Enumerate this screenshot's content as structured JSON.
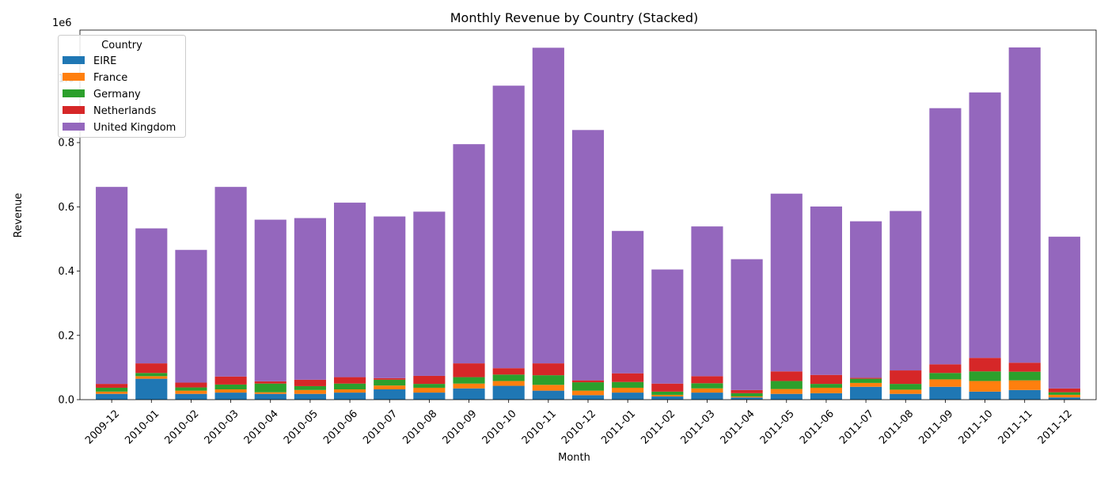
{
  "chart_data": {
    "type": "bar",
    "stacked": true,
    "title": "Monthly Revenue by Country (Stacked)",
    "xlabel": "Month",
    "ylabel": "Revenue",
    "y_scale_label": "1e6",
    "y_tick_labels": [
      "0.0",
      "0.2",
      "0.4",
      "0.6",
      "0.8",
      "1.0"
    ],
    "ylim": [
      0,
      1.15
    ],
    "grid": false,
    "legend_title": "Country",
    "legend_position": "top-left",
    "categories": [
      "2009-12",
      "2010-01",
      "2010-02",
      "2010-03",
      "2010-04",
      "2010-05",
      "2010-06",
      "2010-07",
      "2010-08",
      "2010-09",
      "2010-10",
      "2010-11",
      "2010-12",
      "2011-01",
      "2011-02",
      "2011-03",
      "2011-04",
      "2011-05",
      "2011-06",
      "2011-07",
      "2011-08",
      "2011-09",
      "2011-10",
      "2011-11",
      "2011-12"
    ],
    "series": [
      {
        "name": "EIRE",
        "color": "#1f77b4",
        "values": [
          0.018,
          0.065,
          0.018,
          0.022,
          0.018,
          0.018,
          0.022,
          0.032,
          0.022,
          0.035,
          0.043,
          0.028,
          0.014,
          0.022,
          0.01,
          0.022,
          0.007,
          0.018,
          0.02,
          0.04,
          0.018,
          0.04,
          0.025,
          0.03,
          0.007
        ]
      },
      {
        "name": "France",
        "color": "#ff7f0e",
        "values": [
          0.007,
          0.008,
          0.01,
          0.01,
          0.005,
          0.012,
          0.01,
          0.012,
          0.015,
          0.015,
          0.015,
          0.018,
          0.014,
          0.015,
          0.005,
          0.013,
          0.003,
          0.015,
          0.017,
          0.012,
          0.013,
          0.023,
          0.033,
          0.03,
          0.008
        ]
      },
      {
        "name": "Germany",
        "color": "#2ca02c",
        "values": [
          0.012,
          0.01,
          0.01,
          0.015,
          0.027,
          0.012,
          0.018,
          0.018,
          0.012,
          0.02,
          0.02,
          0.03,
          0.026,
          0.018,
          0.01,
          0.016,
          0.01,
          0.025,
          0.012,
          0.013,
          0.018,
          0.02,
          0.03,
          0.027,
          0.008
        ]
      },
      {
        "name": "Netherlands",
        "color": "#d62728",
        "values": [
          0.012,
          0.03,
          0.015,
          0.025,
          0.007,
          0.02,
          0.02,
          0.005,
          0.025,
          0.043,
          0.02,
          0.037,
          0.006,
          0.027,
          0.025,
          0.022,
          0.01,
          0.03,
          0.028,
          0.003,
          0.042,
          0.027,
          0.042,
          0.028,
          0.012
        ]
      },
      {
        "name": "United Kingdom",
        "color": "#9467bd",
        "values": [
          0.613,
          0.42,
          0.413,
          0.59,
          0.503,
          0.503,
          0.543,
          0.503,
          0.511,
          0.682,
          0.879,
          0.982,
          0.779,
          0.443,
          0.355,
          0.466,
          0.407,
          0.553,
          0.524,
          0.487,
          0.496,
          0.797,
          0.826,
          0.981,
          0.472
        ]
      }
    ]
  }
}
